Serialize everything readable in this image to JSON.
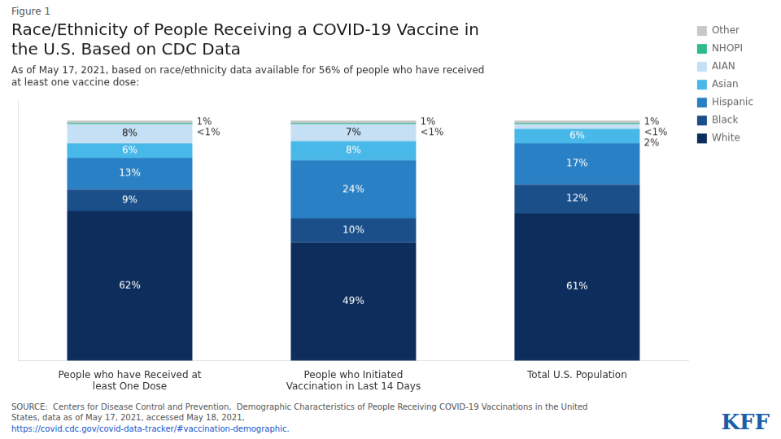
{
  "chart_data": {
    "type": "bar",
    "stacked": true,
    "title": "Race/Ethnicity of People Receiving a COVID-19 Vaccine in\nthe U.S. Based on CDC Data",
    "subtitle": "As of May 17, 2021, based on race/ethnicity data available for 56% of people who have received\nat least one vaccine dose:",
    "annotations": [
      "Figure 1",
      "SOURCE:  Centers for Disease Control and Prevention,  Demographic Characteristics of People Receiving COVID-19 Vaccinations in the United\nStates, data as of May 17, 2021, accessed May 18, 2021, ",
      "https://covid.cdc.gov/covid-data-tracker/#vaccination-demographic.",
      "KFF"
    ],
    "categories": [
      "People who have Received at\nleast One Dose",
      "People who Initiated\nVaccination in Last 14 Days",
      "Total U.S. Population"
    ],
    "series": [
      {
        "name": "White",
        "color": "#0d2d5c",
        "values": [
          62,
          49,
          61
        ],
        "value_labels": [
          "62%",
          "49%",
          "61%"
        ]
      },
      {
        "name": "Black",
        "color": "#1a4f8a",
        "values": [
          9,
          10,
          12
        ],
        "value_labels": [
          "9%",
          "10%",
          "12%"
        ]
      },
      {
        "name": "Hispanic",
        "color": "#2980c4",
        "values": [
          13,
          24,
          17
        ],
        "value_labels": [
          "13%",
          "24%",
          "17%"
        ]
      },
      {
        "name": "Asian",
        "color": "#47b8e8",
        "values": [
          6,
          8,
          6
        ],
        "value_labels": [
          "6%",
          "8%",
          "6%"
        ]
      },
      {
        "name": "AIAN",
        "color": "#c5e0f5",
        "values": [
          8,
          7,
          2
        ],
        "value_labels": [
          "8%",
          "7%",
          "2%"
        ]
      },
      {
        "name": "NHOPI",
        "color": "#2dba8c",
        "values": [
          0.5,
          0.5,
          0.5
        ],
        "value_labels": [
          "<1%",
          "<1%",
          "<1%"
        ]
      },
      {
        "name": "Other",
        "color": "#c8c8c8",
        "values": [
          1,
          1,
          1
        ],
        "value_labels": [
          "1%",
          "1%",
          "1%"
        ]
      }
    ],
    "ylim": [
      0,
      108
    ],
    "data_labels": true,
    "tick_labels": "x",
    "grid": false,
    "legend": "right"
  }
}
